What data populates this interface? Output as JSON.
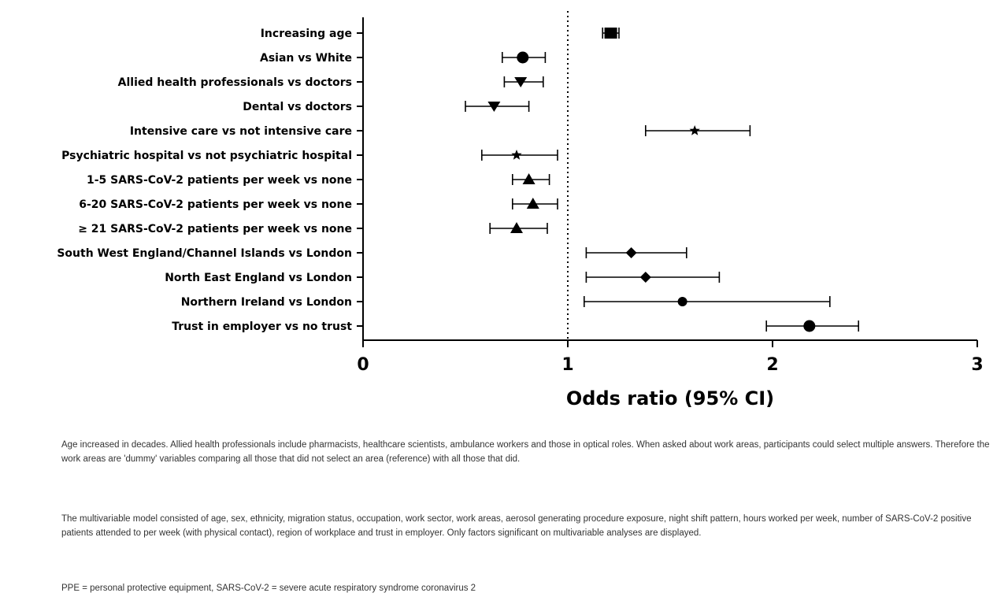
{
  "chart_data": {
    "type": "forest",
    "xlabel": "Odds ratio (95% CI)",
    "xlim": [
      0,
      3
    ],
    "xticks": [
      "0",
      "1",
      "2",
      "3"
    ],
    "reference_line": 1,
    "rows": [
      {
        "label": "Increasing age",
        "or": 1.21,
        "lo": 1.17,
        "hi": 1.25,
        "marker": "square"
      },
      {
        "label": "Asian vs White",
        "or": 0.78,
        "lo": 0.68,
        "hi": 0.89,
        "marker": "circle"
      },
      {
        "label": "Allied health professionals vs doctors",
        "or": 0.77,
        "lo": 0.69,
        "hi": 0.88,
        "marker": "triangle-down"
      },
      {
        "label": "Dental vs doctors",
        "or": 0.64,
        "lo": 0.5,
        "hi": 0.81,
        "marker": "triangle-down"
      },
      {
        "label": "Intensive care vs not intensive care",
        "or": 1.62,
        "lo": 1.38,
        "hi": 1.89,
        "marker": "star"
      },
      {
        "label": "Psychiatric hospital vs not psychiatric hospital",
        "or": 0.75,
        "lo": 0.58,
        "hi": 0.95,
        "marker": "star"
      },
      {
        "label": "1-5 SARS-CoV-2 patients per week vs none",
        "or": 0.81,
        "lo": 0.73,
        "hi": 0.91,
        "marker": "triangle-up"
      },
      {
        "label": "6-20 SARS-CoV-2 patients per week vs none",
        "or": 0.83,
        "lo": 0.73,
        "hi": 0.95,
        "marker": "triangle-up"
      },
      {
        "label": "≥ 21 SARS-CoV-2 patients per week vs none",
        "or": 0.75,
        "lo": 0.62,
        "hi": 0.9,
        "marker": "triangle-up"
      },
      {
        "label": "South West England/Channel Islands vs London",
        "or": 1.31,
        "lo": 1.09,
        "hi": 1.58,
        "marker": "diamond"
      },
      {
        "label": "North East England vs London",
        "or": 1.38,
        "lo": 1.09,
        "hi": 1.74,
        "marker": "diamond"
      },
      {
        "label": "Northern Ireland vs London",
        "or": 1.56,
        "lo": 1.08,
        "hi": 2.28,
        "marker": "circle-small"
      },
      {
        "label": "Trust in employer vs no trust",
        "or": 2.18,
        "lo": 1.97,
        "hi": 2.42,
        "marker": "circle"
      }
    ]
  },
  "notes": {
    "note1": "Age increased in decades. Allied health professionals include pharmacists, healthcare scientists, ambulance workers and those in optical roles. When asked about work areas, participants could select multiple answers. Therefore the work areas are 'dummy' variables comparing all those that did not select an area (reference) with all those that did.",
    "note2": "The multivariable model consisted of age, sex, ethnicity, migration status, occupation, work sector, work areas, aerosol generating procedure exposure, night shift pattern, hours worked per week, number of SARS-CoV-2 positive patients attended to per week (with physical contact), region of workplace and trust in employer. Only factors significant on multivariable analyses are displayed.",
    "note3": "PPE = personal protective equipment, SARS-CoV-2 = severe acute respiratory syndrome coronavirus 2"
  },
  "colors": {
    "ink": "#000000",
    "note_text": "#333333"
  }
}
